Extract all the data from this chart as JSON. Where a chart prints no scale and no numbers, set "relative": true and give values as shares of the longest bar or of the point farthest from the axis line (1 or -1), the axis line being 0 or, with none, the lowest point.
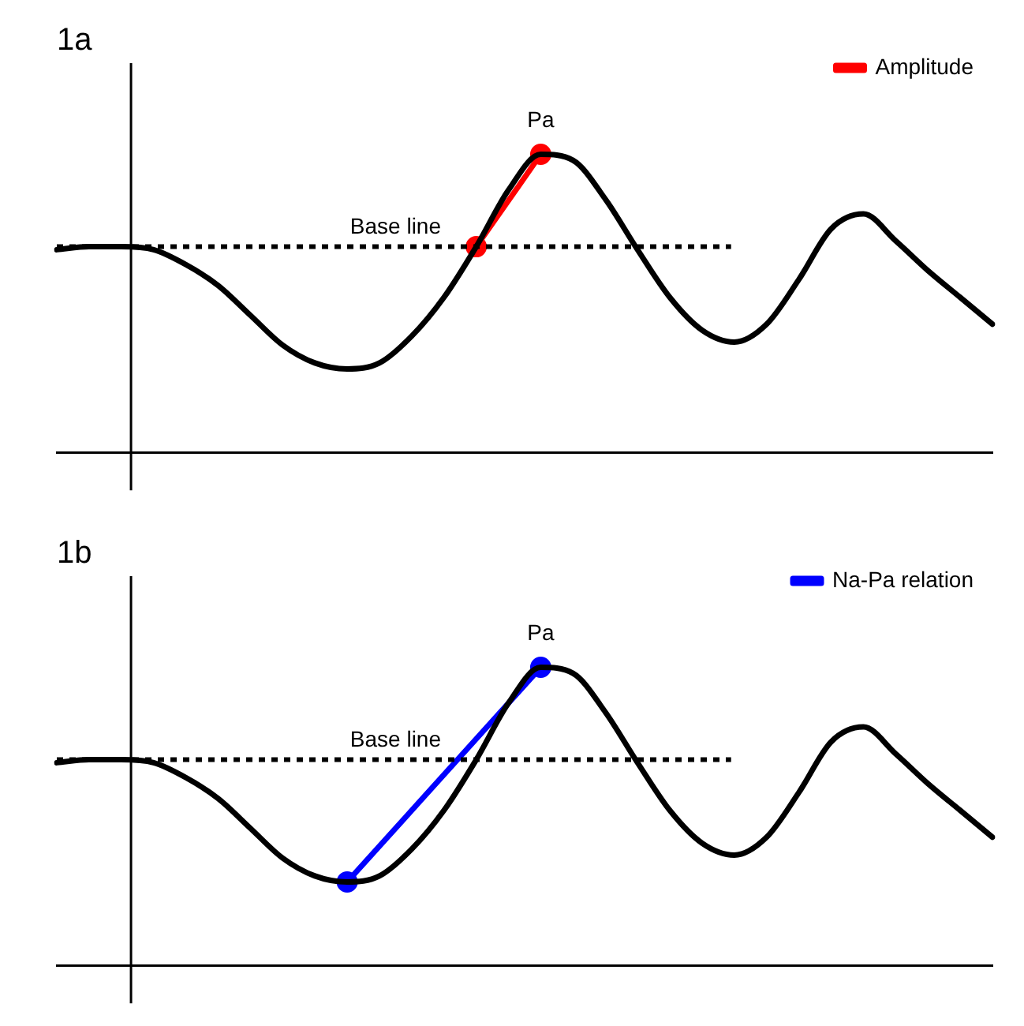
{
  "chart_data": [
    {
      "type": "line",
      "title": "1a",
      "relative": true,
      "grid": false,
      "legend": "top right",
      "categories": [
        null,
        null,
        null,
        null,
        null,
        null,
        null,
        null,
        null,
        null,
        null,
        null,
        null,
        null,
        null,
        null,
        null,
        null,
        null,
        null,
        null,
        null,
        null,
        null,
        null,
        null,
        null,
        null,
        null,
        null
      ],
      "series": [
        {
          "color": "#000000",
          "marker": "none",
          "values": [
            0.68,
            0.69,
            0.69,
            0.68,
            0.63,
            0.56,
            0.46,
            0.36,
            0.3,
            0.28,
            0.3,
            0.39,
            0.52,
            0.69,
            0.88,
            1,
            0.98,
            0.85,
            0.68,
            0.52,
            0.41,
            0.37,
            0.43,
            0.58,
            0.75,
            0.8,
            0.71,
            0.61,
            0.52,
            0.43
          ]
        },
        {
          "name": "Amplitude",
          "color": "#ff0000",
          "marker": "circle",
          "values": [
            null,
            null,
            null,
            null,
            null,
            null,
            null,
            null,
            null,
            null,
            null,
            null,
            null,
            0.69,
            null,
            1,
            null,
            null,
            null,
            null,
            null,
            null,
            null,
            null,
            null,
            null,
            null,
            null,
            null,
            null
          ]
        }
      ],
      "ref_lines": [
        {
          "axis": "y",
          "value": 0.69,
          "label": "Base line",
          "line_style": "dotted",
          "color": "#000000"
        }
      ],
      "annotations": [
        "Pa"
      ]
    },
    {
      "type": "line",
      "title": "1b",
      "relative": true,
      "grid": false,
      "legend": "top right",
      "categories": [
        null,
        null,
        null,
        null,
        null,
        null,
        null,
        null,
        null,
        null,
        null,
        null,
        null,
        null,
        null,
        null,
        null,
        null,
        null,
        null,
        null,
        null,
        null,
        null,
        null,
        null,
        null,
        null,
        null,
        null
      ],
      "series": [
        {
          "color": "#000000",
          "marker": "none",
          "values": [
            0.68,
            0.69,
            0.69,
            0.68,
            0.63,
            0.56,
            0.46,
            0.36,
            0.3,
            0.28,
            0.3,
            0.39,
            0.52,
            0.69,
            0.88,
            1,
            0.98,
            0.85,
            0.68,
            0.52,
            0.41,
            0.37,
            0.43,
            0.58,
            0.75,
            0.8,
            0.71,
            0.61,
            0.52,
            0.43
          ]
        },
        {
          "name": "Na-Pa relation",
          "color": "#0000ff",
          "marker": "circle",
          "values": [
            null,
            null,
            null,
            null,
            null,
            null,
            null,
            null,
            null,
            0.28,
            null,
            null,
            null,
            null,
            null,
            1,
            null,
            null,
            null,
            null,
            null,
            null,
            null,
            null,
            null,
            null,
            null,
            null,
            null,
            null
          ]
        }
      ],
      "ref_lines": [
        {
          "axis": "y",
          "value": 0.69,
          "label": "Base line",
          "line_style": "dotted",
          "color": "#000000"
        }
      ],
      "annotations": [
        "Pa"
      ]
    }
  ]
}
